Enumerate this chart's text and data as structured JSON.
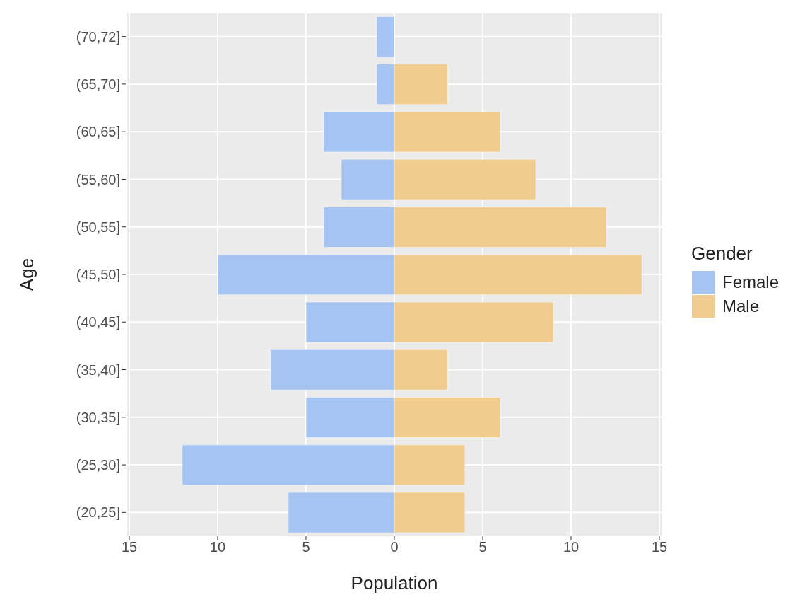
{
  "chart_data": {
    "type": "bar",
    "orientation": "horizontal",
    "xlabel": "Population",
    "ylabel": "Age",
    "legend_title": "Gender",
    "categories": [
      "(70,72]",
      "(65,70]",
      "(60,65]",
      "(55,60]",
      "(50,55]",
      "(45,50]",
      "(40,45]",
      "(35,40]",
      "(30,35]",
      "(25,30]",
      "(20,25]"
    ],
    "series": [
      {
        "name": "Female",
        "color": "#a6c4f2",
        "values": [
          -1,
          -1,
          -4,
          -3,
          -4,
          -10,
          -5,
          -7,
          -5,
          -12,
          -6
        ]
      },
      {
        "name": "Male",
        "color": "#f0cc8e",
        "values": [
          null,
          3,
          6,
          8,
          12,
          14,
          9,
          3,
          6,
          4,
          4
        ]
      }
    ],
    "xlim": [
      -15.2,
      15.2
    ],
    "xticks": [
      {
        "value": -15,
        "label": "15"
      },
      {
        "value": -10,
        "label": "10"
      },
      {
        "value": -5,
        "label": "5"
      },
      0,
      5,
      10,
      15
    ],
    "grid": true,
    "legend": "right",
    "stacked": true
  }
}
